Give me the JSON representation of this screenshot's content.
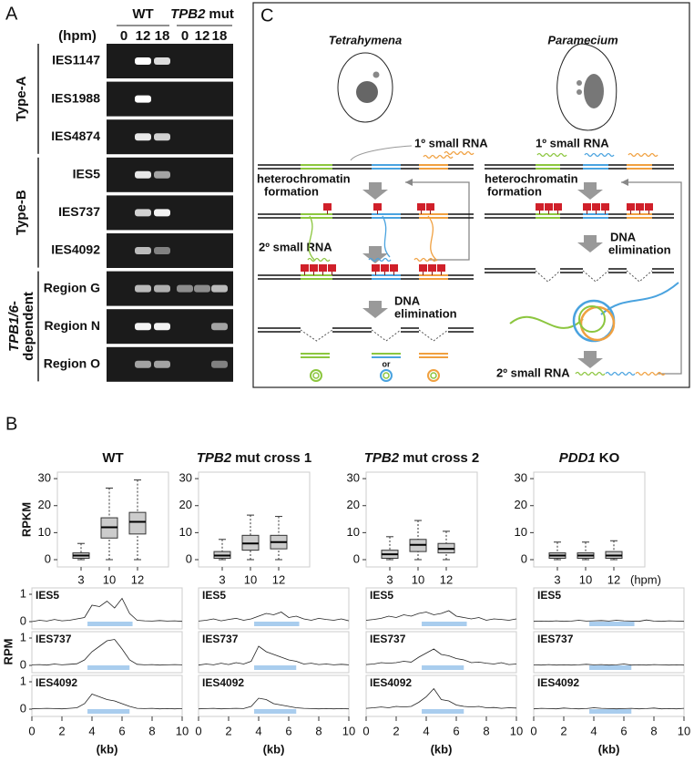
{
  "panel_a": {
    "label": "A",
    "genotypes": [
      {
        "name": "WT"
      },
      {
        "gene": "TPB2",
        "name": "mut"
      }
    ],
    "hours_label": "(hpm)",
    "lanes": [
      0,
      12,
      18,
      0,
      12,
      18
    ],
    "groups": [
      {
        "lines": [
          {
            "plain": "Type-A"
          }
        ],
        "rows": [
          "IES1147",
          "IES1988",
          "IES4874"
        ]
      },
      {
        "lines": [
          {
            "plain": "Type-B"
          }
        ],
        "rows": [
          "IES5",
          "IES737",
          "IES4092"
        ]
      },
      {
        "lines": [
          {
            "italic": "TPB1/6",
            "plain": "-"
          },
          {
            "plain": "dependent"
          }
        ],
        "rows": [
          "Region G",
          "Region N",
          "Region O"
        ]
      }
    ]
  },
  "panel_c": {
    "label": "C",
    "organisms": [
      {
        "name": "Tetrahymena",
        "primary": "1º small RNA",
        "heterochromatin": [
          "heterochromatin",
          "formation"
        ],
        "secondary": "2º small RNA",
        "elimination": [
          "DNA",
          "elimination"
        ],
        "or": "or"
      },
      {
        "name": "Paramecium",
        "primary": "1º small RNA",
        "heterochromatin": [
          "heterochromatin",
          "formation"
        ],
        "secondary": "2º small RNA",
        "elimination": [
          "DNA",
          "elimination"
        ]
      }
    ]
  },
  "panel_b_label": "B",
  "chart_data": [
    {
      "type": "box",
      "title": "WT",
      "ylabel": "RPKM",
      "categories": [
        3,
        10,
        12
      ],
      "ylim": [
        -2.7,
        32.4
      ],
      "yticks": [
        0,
        10,
        20,
        30
      ],
      "color": "#cccccc",
      "boxes": [
        {
          "min": 0,
          "q1": 0.5,
          "median": 1.5,
          "q3": 2.5,
          "max": 6
        },
        {
          "min": 0,
          "q1": 8,
          "median": 12,
          "q3": 15.5,
          "max": 26.5
        },
        {
          "min": 0,
          "q1": 9.5,
          "median": 14,
          "q3": 17.5,
          "max": 29.5
        }
      ]
    },
    {
      "type": "box",
      "title_gene": "TPB2",
      "title": "mut cross 1",
      "categories": [
        3,
        10,
        12
      ],
      "ylim": [
        -2.7,
        32.4
      ],
      "yticks": [
        0,
        10,
        20,
        30
      ],
      "color": "#cccccc",
      "boxes": [
        {
          "min": 0,
          "q1": 0.5,
          "median": 1.5,
          "q3": 3,
          "max": 7.5
        },
        {
          "min": 0,
          "q1": 3.5,
          "median": 6,
          "q3": 9,
          "max": 16.5
        },
        {
          "min": 0,
          "q1": 4,
          "median": 6.5,
          "q3": 9,
          "max": 16
        }
      ]
    },
    {
      "type": "box",
      "title_gene": "TPB2",
      "title": "mut cross 2",
      "categories": [
        3,
        10,
        12
      ],
      "ylim": [
        -2.7,
        32.4
      ],
      "yticks": [
        0,
        10,
        20,
        30
      ],
      "color": "#cccccc",
      "boxes": [
        {
          "min": 0,
          "q1": 0.5,
          "median": 2,
          "q3": 3.5,
          "max": 8.5
        },
        {
          "min": 0,
          "q1": 3,
          "median": 5.5,
          "q3": 7.5,
          "max": 14.5
        },
        {
          "min": 0,
          "q1": 2.5,
          "median": 4,
          "q3": 6,
          "max": 10.5
        }
      ]
    },
    {
      "type": "box",
      "title_gene": "PDD1",
      "title": "KO",
      "xlabel": "(hpm)",
      "categories": [
        3,
        10,
        12
      ],
      "ylim": [
        -2.7,
        32.4
      ],
      "yticks": [
        0,
        10,
        20,
        30
      ],
      "color": "#cccccc",
      "boxes": [
        {
          "min": 0,
          "q1": 0.5,
          "median": 1.5,
          "q3": 2.5,
          "max": 6.5
        },
        {
          "min": 0,
          "q1": 0.5,
          "median": 1.5,
          "q3": 2.5,
          "max": 6.5
        },
        {
          "min": 0,
          "q1": 0.5,
          "median": 1.5,
          "q3": 3,
          "max": 7
        }
      ]
    }
  ],
  "coverage": {
    "ylabel": "RPM",
    "xlabel": "(kb)",
    "xlim": [
      0,
      10
    ],
    "xticks": [
      0,
      2,
      4,
      6,
      8,
      10
    ],
    "ylim": [
      0,
      1.1
    ],
    "yticks": [
      0,
      1
    ],
    "ies_color": "#a9cdee",
    "x": [
      0,
      0.5,
      1,
      1.5,
      2,
      2.5,
      3,
      3.5,
      4,
      4.5,
      5,
      5.5,
      6,
      6.5,
      7,
      7.5,
      8,
      8.5,
      9,
      9.5,
      10
    ],
    "ies": [
      {
        "name": "IES5",
        "span": [
          3.7,
          6.7
        ]
      },
      {
        "name": "IES737",
        "span": [
          3.7,
          6.5
        ]
      },
      {
        "name": "IES4092",
        "span": [
          3.7,
          6.5
        ]
      }
    ],
    "panels": [
      {
        "traces": [
          [
            0,
            0.05,
            0.02,
            0.08,
            0.03,
            0.05,
            0.1,
            0.15,
            0.6,
            0.55,
            0.75,
            0.5,
            0.85,
            0.3,
            0.05,
            0.03,
            0.02,
            0.04,
            0.02,
            0.03,
            0.01
          ],
          [
            0.02,
            0.03,
            0.01,
            0.05,
            0.02,
            0.04,
            0.06,
            0.2,
            0.5,
            0.7,
            0.9,
            0.95,
            0.6,
            0.2,
            0.04,
            0.02,
            0.03,
            0.01,
            0.02,
            0.03,
            0.02
          ],
          [
            0.01,
            0.02,
            0.03,
            0.02,
            0.01,
            0.03,
            0.05,
            0.2,
            0.55,
            0.45,
            0.35,
            0.3,
            0.2,
            0.1,
            0.03,
            0.02,
            0.03,
            0.01,
            0.02,
            0.01,
            0.02
          ]
        ]
      },
      {
        "traces": [
          [
            0.02,
            0.05,
            0.1,
            0.03,
            0.08,
            0.12,
            0.05,
            0.1,
            0.2,
            0.3,
            0.25,
            0.35,
            0.15,
            0.2,
            0.1,
            0.05,
            0.12,
            0.08,
            0.05,
            0.1,
            0.03
          ],
          [
            0.01,
            0.05,
            0.02,
            0.08,
            0.03,
            0.1,
            0.05,
            0.15,
            0.7,
            0.5,
            0.4,
            0.3,
            0.2,
            0.15,
            0.05,
            0.08,
            0.03,
            0.05,
            0.02,
            0.04,
            0.02
          ],
          [
            0.01,
            0.02,
            0.03,
            0.01,
            0.02,
            0.03,
            0.02,
            0.1,
            0.4,
            0.35,
            0.2,
            0.15,
            0.1,
            0.05,
            0.03,
            0.02,
            0.01,
            0.02,
            0.01,
            0.02,
            0.01
          ]
        ]
      },
      {
        "traces": [
          [
            0.05,
            0.08,
            0.12,
            0.2,
            0.15,
            0.25,
            0.2,
            0.3,
            0.35,
            0.25,
            0.3,
            0.4,
            0.2,
            0.15,
            0.1,
            0.15,
            0.05,
            0.1,
            0.08,
            0.05,
            0.1
          ],
          [
            0.03,
            0.05,
            0.1,
            0.08,
            0.1,
            0.15,
            0.12,
            0.3,
            0.45,
            0.6,
            0.4,
            0.35,
            0.25,
            0.2,
            0.1,
            0.12,
            0.08,
            0.05,
            0.1,
            0.03,
            0.05
          ],
          [
            0.03,
            0.05,
            0.08,
            0.05,
            0.1,
            0.08,
            0.1,
            0.25,
            0.45,
            0.75,
            0.35,
            0.3,
            0.15,
            0.1,
            0.08,
            0.1,
            0.05,
            0.06,
            0.03,
            0.05,
            0.04
          ]
        ]
      },
      {
        "traces": [
          [
            0.01,
            0.02,
            0.01,
            0.03,
            0.01,
            0.02,
            0.05,
            0.02,
            0.03,
            0.04,
            0.02,
            0.05,
            0.03,
            0.02,
            0.01,
            0.06,
            0.02,
            0.01,
            0.03,
            0.02,
            0.01
          ],
          [
            0.02,
            0.01,
            0.03,
            0.01,
            0.02,
            0.01,
            0.02,
            0.04,
            0.02,
            0.03,
            0.01,
            0.02,
            0.05,
            0.01,
            0.02,
            0.01,
            0.03,
            0.02,
            0.01,
            0.02,
            0.01
          ],
          [
            0.01,
            0.03,
            0.02,
            0.01,
            0.04,
            0.02,
            0.01,
            0.02,
            0.05,
            0.03,
            0.02,
            0.01,
            0.02,
            0.03,
            0.01,
            0.02,
            0.04,
            0.01,
            0.02,
            0.01,
            0.03
          ]
        ]
      }
    ]
  }
}
